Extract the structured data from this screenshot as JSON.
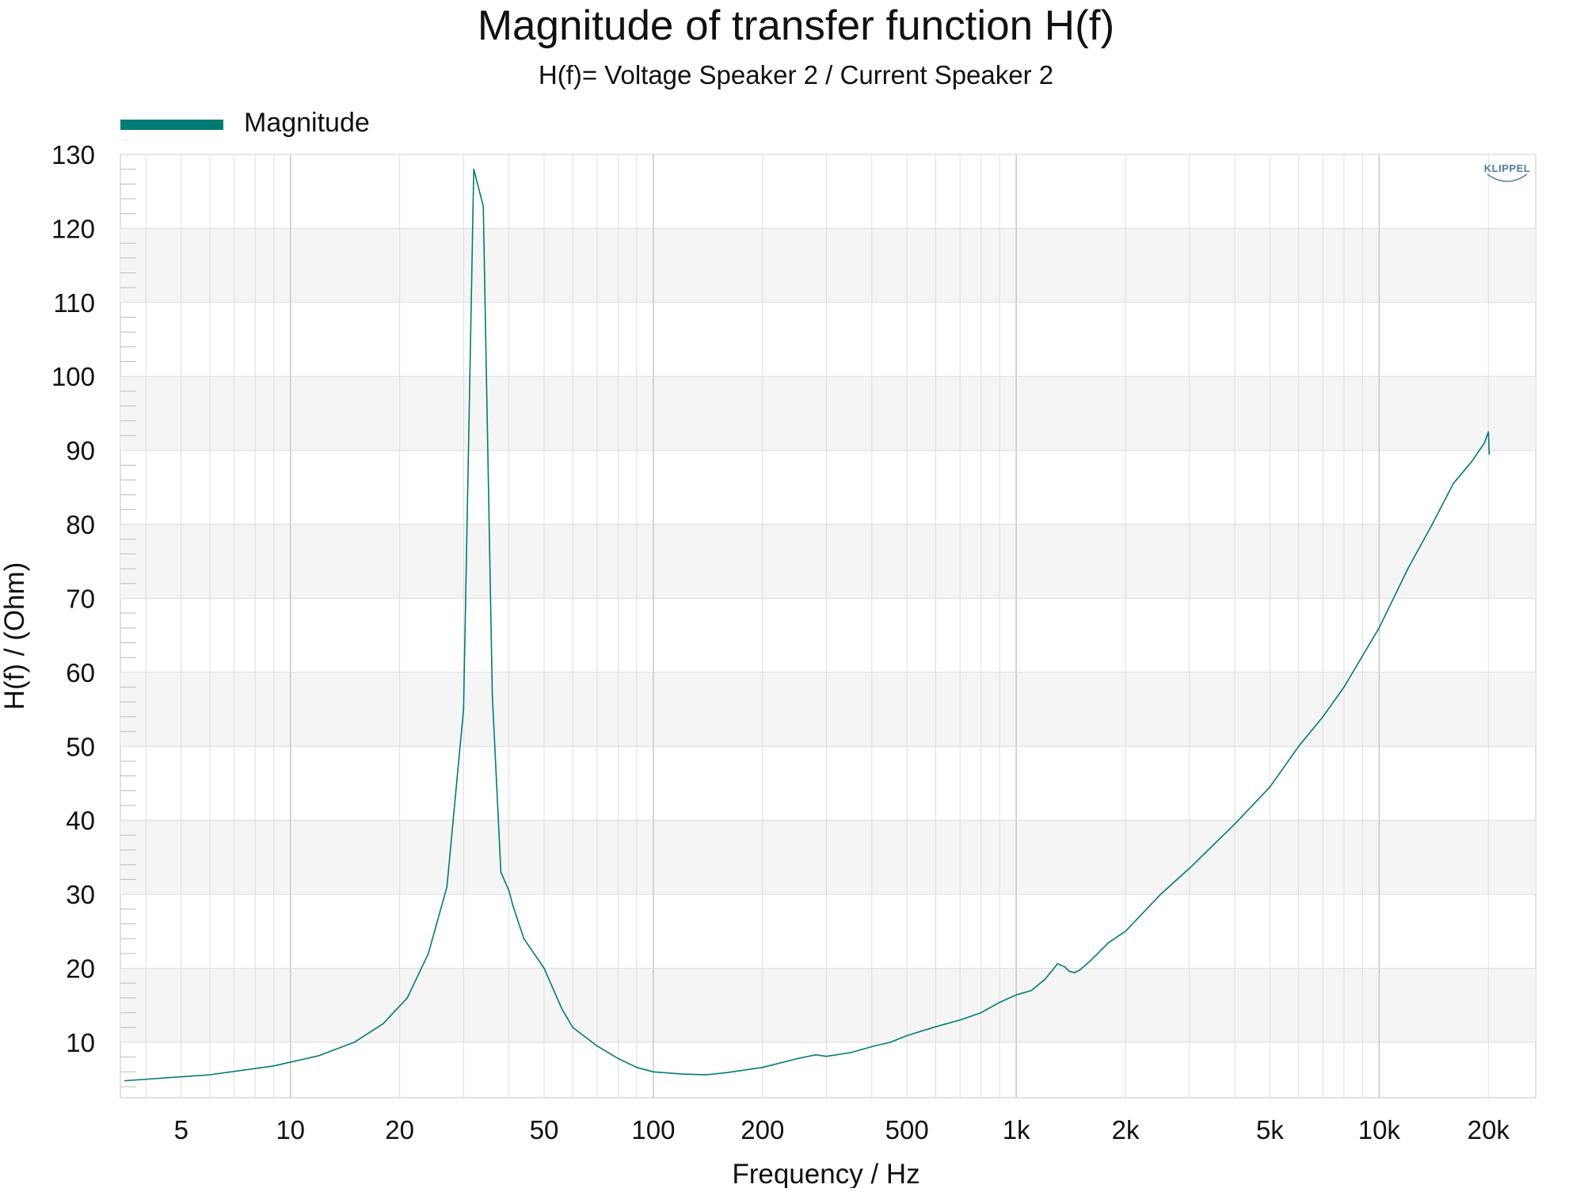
{
  "chart_data": {
    "type": "line",
    "title": "Magnitude of transfer function H(f)",
    "subtitle": "H(f)= Voltage Speaker 2 / Current Speaker 2",
    "xlabel": "Frequency / Hz",
    "ylabel": "H(f) / (Ohm)",
    "xscale": "log",
    "xlim": [
      3.4,
      27000
    ],
    "ylim": [
      2.5,
      130
    ],
    "grid": true,
    "legend_position": "top-left",
    "brand": "KLIPPEL",
    "xticks": [
      {
        "value": 5,
        "label": "5"
      },
      {
        "value": 10,
        "label": "10"
      },
      {
        "value": 20,
        "label": "20"
      },
      {
        "value": 50,
        "label": "50"
      },
      {
        "value": 100,
        "label": "100"
      },
      {
        "value": 200,
        "label": "200"
      },
      {
        "value": 500,
        "label": "500"
      },
      {
        "value": 1000,
        "label": "1k"
      },
      {
        "value": 2000,
        "label": "2k"
      },
      {
        "value": 5000,
        "label": "5k"
      },
      {
        "value": 10000,
        "label": "10k"
      },
      {
        "value": 20000,
        "label": "20k"
      }
    ],
    "yticks": [
      10,
      20,
      30,
      40,
      50,
      60,
      70,
      80,
      90,
      100,
      110,
      120,
      130
    ],
    "series": [
      {
        "name": "Magnitude",
        "color": "#007b74",
        "x": [
          3.5,
          6,
          9,
          12,
          15,
          18,
          21,
          24,
          27,
          30,
          32,
          34,
          36,
          38,
          40,
          41,
          44,
          50,
          56,
          60,
          70,
          80,
          90,
          100,
          120,
          140,
          160,
          200,
          250,
          280,
          300,
          350,
          400,
          450,
          500,
          600,
          700,
          800,
          900,
          1000,
          1100,
          1200,
          1300,
          1360,
          1400,
          1450,
          1500,
          1600,
          1800,
          2000,
          2500,
          3000,
          4000,
          5000,
          6000,
          7000,
          8000,
          10000,
          12000,
          14000,
          16000,
          18000,
          19500,
          20000,
          20100
        ],
        "y": [
          4.8,
          5.6,
          6.8,
          8.2,
          10.0,
          12.5,
          16.0,
          22.0,
          31.0,
          55.0,
          128.0,
          123.0,
          57.0,
          33.0,
          30.5,
          28.5,
          24.0,
          20.0,
          14.5,
          12.0,
          9.5,
          7.8,
          6.6,
          6.0,
          5.7,
          5.6,
          5.9,
          6.6,
          7.8,
          8.3,
          8.1,
          8.6,
          9.4,
          10.0,
          10.9,
          12.1,
          13.0,
          14.0,
          15.4,
          16.4,
          17.0,
          18.5,
          20.6,
          20.2,
          19.6,
          19.4,
          19.8,
          21.0,
          23.5,
          25.0,
          30.0,
          33.5,
          39.5,
          44.5,
          50.0,
          54.0,
          58.0,
          66.0,
          74.0,
          80.0,
          85.5,
          88.5,
          91.0,
          92.5,
          89.5
        ]
      }
    ]
  }
}
